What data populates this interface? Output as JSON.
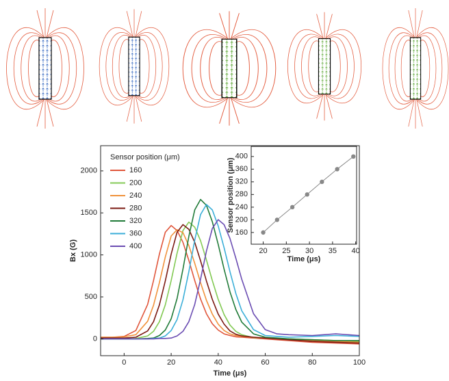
{
  "chart_data": [
    {
      "type": "line",
      "x_label": "Time (μs)",
      "y_label": "Bx (G)",
      "legend_title": "Sensor position (μm)",
      "legend": "upper-left",
      "x": [
        -10,
        -5,
        0,
        5,
        10,
        12.5,
        15,
        17.5,
        20,
        22.5,
        25,
        27.5,
        30,
        32.5,
        35,
        37.5,
        40,
        42.5,
        45,
        47.5,
        50,
        55,
        60,
        65,
        70,
        80,
        90,
        100
      ],
      "xlim": [
        -10,
        100
      ],
      "xticks": [
        0,
        20,
        40,
        60,
        80,
        100
      ],
      "ylim": [
        -200,
        2300
      ],
      "yticks": [
        0,
        500,
        1000,
        1500,
        2000
      ],
      "series": [
        {
          "name": "160",
          "color": "#e0553a",
          "values": [
            20,
            20,
            30,
            100,
            410,
            695,
            1010,
            1270,
            1350,
            1290,
            1150,
            935,
            695,
            475,
            300,
            180,
            105,
            60,
            40,
            25,
            20,
            10,
            0,
            -10,
            -20,
            -40,
            -50,
            -60
          ]
        },
        {
          "name": "200",
          "color": "#82c953",
          "values": [
            0,
            0,
            0,
            5,
            35,
            90,
            205,
            405,
            695,
            1020,
            1290,
            1390,
            1330,
            1170,
            940,
            695,
            470,
            290,
            165,
            90,
            50,
            15,
            10,
            5,
            0,
            -10,
            -20,
            -30
          ]
        },
        {
          "name": "240",
          "color": "#f0913a",
          "values": [
            20,
            20,
            25,
            50,
            210,
            400,
            670,
            975,
            1225,
            1300,
            1265,
            1110,
            900,
            670,
            460,
            295,
            175,
            100,
            60,
            40,
            30,
            20,
            10,
            5,
            0,
            -20,
            -30,
            -40
          ]
        },
        {
          "name": "280",
          "color": "#7b1a12",
          "values": [
            10,
            10,
            10,
            20,
            95,
            205,
            405,
            690,
            1010,
            1270,
            1360,
            1305,
            1150,
            930,
            690,
            470,
            295,
            175,
            95,
            55,
            35,
            20,
            10,
            0,
            -10,
            -30,
            -40,
            -50
          ]
        },
        {
          "name": "320",
          "color": "#1f7a37",
          "values": [
            0,
            0,
            0,
            0,
            5,
            10,
            40,
            105,
            240,
            480,
            830,
            1220,
            1535,
            1660,
            1590,
            1395,
            1125,
            830,
            560,
            350,
            200,
            60,
            20,
            10,
            0,
            -10,
            -20,
            -20
          ]
        },
        {
          "name": "360",
          "color": "#3aaed8",
          "values": [
            0,
            0,
            0,
            0,
            0,
            5,
            10,
            35,
            100,
            230,
            465,
            800,
            1175,
            1480,
            1600,
            1535,
            1345,
            1085,
            800,
            540,
            335,
            110,
            40,
            30,
            20,
            30,
            40,
            30
          ]
        },
        {
          "name": "400",
          "color": "#6a4cb2",
          "values": [
            0,
            0,
            0,
            0,
            0,
            0,
            5,
            5,
            10,
            35,
            90,
            205,
            410,
            710,
            1045,
            1315,
            1420,
            1360,
            1195,
            960,
            710,
            300,
            110,
            60,
            50,
            40,
            60,
            40
          ]
        }
      ]
    },
    {
      "type": "line",
      "markers": true,
      "color": "#888888",
      "x_label": "Time (μs)",
      "y_label": "Sensor position (μm)",
      "x": [
        20,
        23,
        26.3,
        29.5,
        32.7,
        36,
        39.5
      ],
      "values": [
        160,
        200,
        240,
        280,
        320,
        360,
        400
      ],
      "xlim": [
        17.4,
        40.2
      ],
      "xticks": [
        20,
        25,
        30,
        35,
        40
      ],
      "ylim": [
        123,
        432
      ],
      "yticks": [
        160,
        200,
        240,
        280,
        320,
        360,
        400
      ]
    }
  ]
}
